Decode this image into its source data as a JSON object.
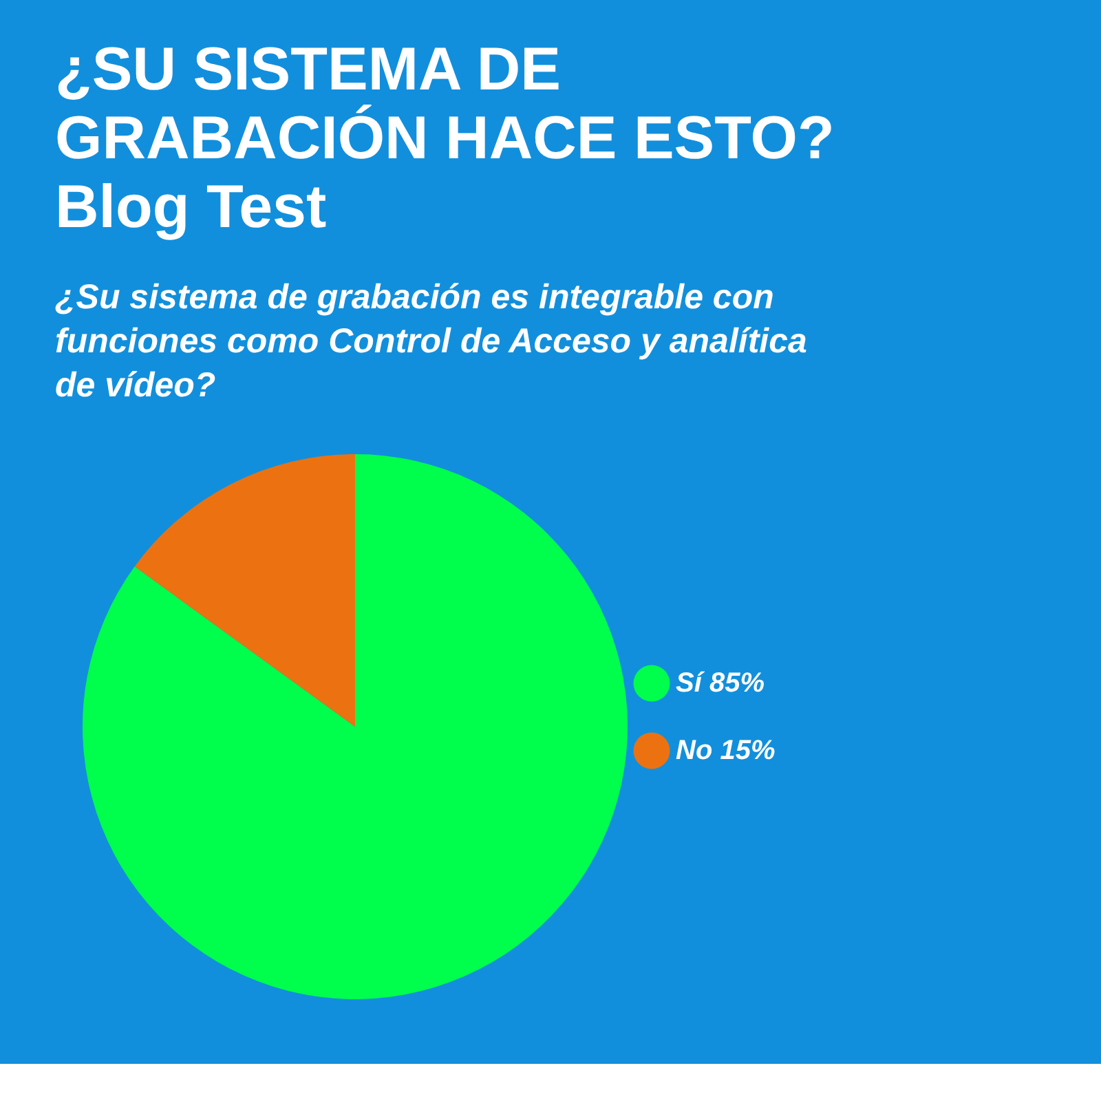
{
  "chart_data": {
    "type": "pie",
    "title": "¿SU SISTEMA DE GRABACIÓN HACE ESTO? Blog Test",
    "subtitle": "¿Su sistema de grabación es integrable con funciones como Control de Acceso y analítica de vídeo?",
    "categories": [
      "Sí",
      "No"
    ],
    "values": [
      85,
      15
    ],
    "value_labels": [
      "85%",
      "15%"
    ],
    "colors": [
      "#00ff4c",
      "#ec7211"
    ],
    "legend": "right"
  }
}
